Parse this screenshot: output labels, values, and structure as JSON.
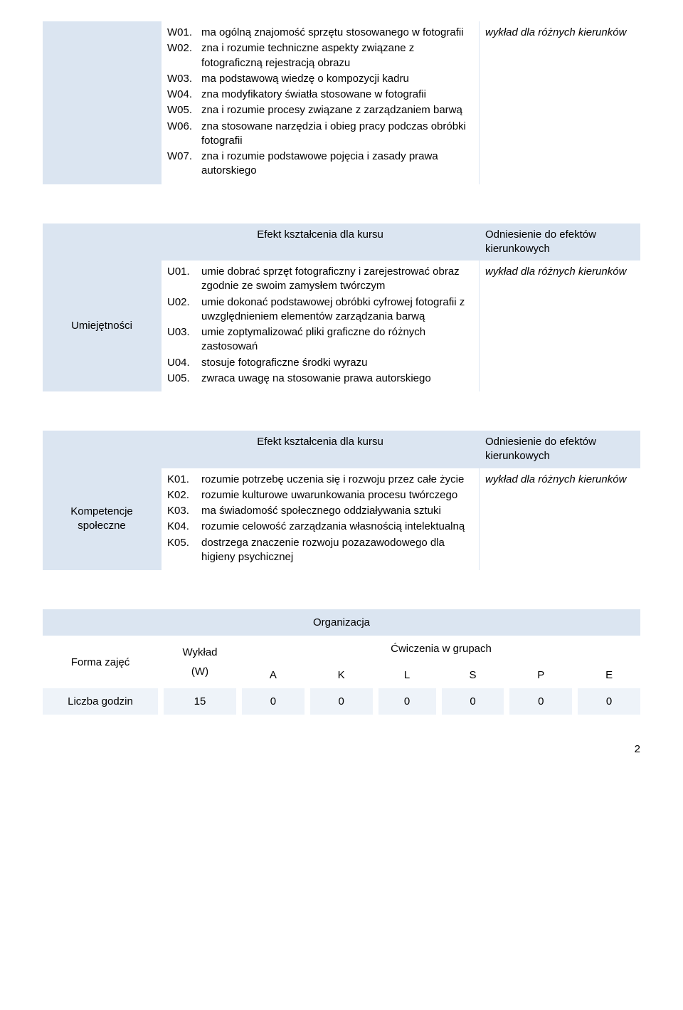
{
  "colors": {
    "header_bg": "#dbe5f1",
    "cell_bg": "#eef3f9",
    "text": "#000000",
    "page_bg": "#ffffff"
  },
  "top": {
    "right_note": "wykład dla różnych kierunków",
    "items": [
      {
        "code": "W01.",
        "text": "ma ogólną znajomość sprzętu stosowanego w fotografii"
      },
      {
        "code": "W02.",
        "text": "zna i rozumie techniczne aspekty związane z fotograficzną rejestracją obrazu"
      },
      {
        "code": "W03.",
        "text": "ma podstawową wiedzę o kompozycji kadru"
      },
      {
        "code": "W04.",
        "text": "zna modyfikatory światła stosowane w fotografii"
      },
      {
        "code": "W05.",
        "text": "zna i rozumie procesy związane z zarządzaniem barwą"
      },
      {
        "code": "W06.",
        "text": "zna stosowane narzędzia i obieg pracy podczas obróbki fotografii"
      },
      {
        "code": "W07.",
        "text": "zna i rozumie podstawowe pojęcia i zasady prawa autorskiego"
      }
    ]
  },
  "skills": {
    "section_label": "Umiejętności",
    "header_mid": "Efekt kształcenia dla kursu",
    "header_right": "Odniesienie do efektów kierunkowych",
    "right_note": "wykład dla różnych kierunków",
    "items": [
      {
        "code": "U01.",
        "text": "umie dobrać sprzęt fotograficzny i zarejestrować obraz zgodnie ze swoim zamysłem twórczym"
      },
      {
        "code": "U02.",
        "text": "umie dokonać podstawowej obróbki cyfrowej fotografii z uwzględnieniem elementów zarządzania barwą"
      },
      {
        "code": "U03.",
        "text": "umie zoptymalizować pliki graficzne do różnych zastosowań"
      },
      {
        "code": "U04.",
        "text": "stosuje fotograficzne środki wyrazu"
      },
      {
        "code": "U05.",
        "text": "zwraca uwagę na stosowanie prawa autorskiego"
      }
    ]
  },
  "social": {
    "section_label": "Kompetencje społeczne",
    "header_mid": "Efekt kształcenia dla kursu",
    "header_right": "Odniesienie do efektów kierunkowych",
    "right_note": "wykład dla różnych kierunków",
    "items": [
      {
        "code": "K01.",
        "text": "rozumie potrzebę uczenia się i rozwoju przez całe życie"
      },
      {
        "code": "K02.",
        "text": "rozumie kulturowe uwarunkowania procesu twórczego"
      },
      {
        "code": "K03.",
        "text": "ma świadomość społecznego oddziaływania sztuki"
      },
      {
        "code": "K04.",
        "text": "rozumie celowość zarządzania własnością intelektualną"
      },
      {
        "code": "K05.",
        "text": "dostrzega znaczenie rozwoju pozazawodowego dla higieny psychicznej"
      }
    ]
  },
  "org": {
    "title": "Organizacja",
    "row1_label": "Forma zajęć",
    "wyklad_label": "Wykład",
    "wyklad_sub": "(W)",
    "group_label": "Ćwiczenia w grupach",
    "cols": [
      "A",
      "K",
      "L",
      "S",
      "P",
      "E"
    ],
    "row2_label": "Liczba godzin",
    "wyklad_hours": "15",
    "hours": [
      "0",
      "0",
      "0",
      "0",
      "0",
      "0"
    ]
  },
  "page_number": "2"
}
